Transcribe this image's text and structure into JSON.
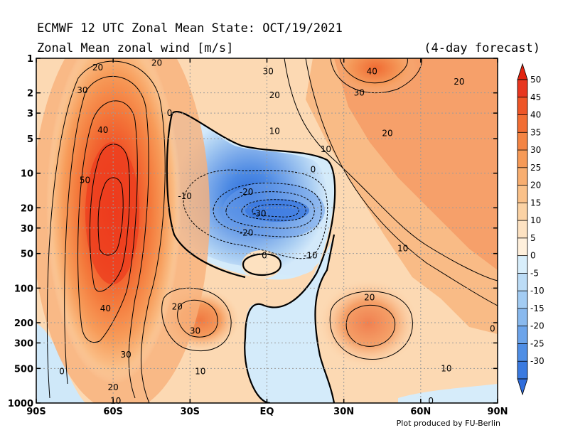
{
  "title": "ECMWF 12 UTC Zonal Mean State: OCT/19/2021",
  "subtitle": "Zonal Mean zonal wind [m/s]",
  "forecast_note": "(4-day forecast)",
  "credit": "Plot produced by FU-Berlin",
  "chart_data": {
    "type": "contour",
    "variable": "Zonal Mean zonal wind",
    "units": "m/s",
    "x_axis": {
      "ticks": [
        -90,
        -60,
        -30,
        0,
        30,
        60,
        90
      ],
      "tick_labels": [
        "90S",
        "60S",
        "30S",
        "EQ",
        "30N",
        "60N",
        "90N"
      ],
      "range": [
        -90,
        90
      ]
    },
    "y_axis": {
      "scale": "log",
      "inverted": true,
      "ticks": [
        1,
        2,
        3,
        5,
        10,
        20,
        30,
        50,
        100,
        200,
        300,
        500,
        1000
      ],
      "tick_labels": [
        "1",
        "2",
        "3",
        "5",
        "10",
        "20",
        "30",
        "50",
        "100",
        "200",
        "300",
        "500",
        "1000"
      ],
      "range": [
        1,
        1000
      ]
    },
    "grid": true,
    "colorbar": {
      "levels": [
        -30,
        -25,
        -20,
        -15,
        -10,
        -5,
        0,
        5,
        10,
        15,
        20,
        25,
        30,
        35,
        40,
        45,
        50
      ],
      "labels": [
        "50",
        "45",
        "40",
        "35",
        "30",
        "25",
        "20",
        "15",
        "10",
        "5",
        "0",
        "-5",
        "-10",
        "-15",
        "-20",
        "-25",
        "-30"
      ],
      "colors": [
        "#e8361f",
        "#ee5527",
        "#f26d33",
        "#f48443",
        "#f69a57",
        "#f8ae70",
        "#fac189",
        "#fbd2a4",
        "#fde2c2",
        "#fff0dc",
        "#d8eefb",
        "#bcdcf6",
        "#a3ccf3",
        "#89b9ee",
        "#6ca4ea",
        "#4f8ee5",
        "#3a7ae0"
      ],
      "colors_order": "top-to-bottom",
      "extends": "both"
    },
    "contour_labels": [
      {
        "value": "20",
        "lon": -66,
        "p": 1.2
      },
      {
        "value": "20",
        "lon": -43,
        "p": 1.1
      },
      {
        "value": "30",
        "lon": 0.5,
        "p": 1.3
      },
      {
        "value": "40",
        "lon": 41,
        "p": 1.3
      },
      {
        "value": "20",
        "lon": 75,
        "p": 1.6
      },
      {
        "value": "30",
        "lon": -72,
        "p": 1.9
      },
      {
        "value": "20",
        "lon": 3,
        "p": 2.1
      },
      {
        "value": "30",
        "lon": 36,
        "p": 2.0
      },
      {
        "value": "0",
        "lon": -38,
        "p": 3.0
      },
      {
        "value": "40",
        "lon": -64,
        "p": 4.2
      },
      {
        "value": "10",
        "lon": 3,
        "p": 4.3
      },
      {
        "value": "20",
        "lon": 47,
        "p": 4.5
      },
      {
        "value": "10",
        "lon": 23,
        "p": 6.2
      },
      {
        "value": "0",
        "lon": 18,
        "p": 9.3
      },
      {
        "value": "50",
        "lon": -71,
        "p": 11.5
      },
      {
        "value": "-10",
        "lon": -32,
        "p": 15.8
      },
      {
        "value": "-20",
        "lon": -8,
        "p": 14.5
      },
      {
        "value": "-30",
        "lon": -3,
        "p": 22.5
      },
      {
        "value": "-20",
        "lon": -8,
        "p": 33
      },
      {
        "value": "10",
        "lon": 53,
        "p": 45
      },
      {
        "value": "-10",
        "lon": 17,
        "p": 52
      },
      {
        "value": "0",
        "lon": -1,
        "p": 52
      },
      {
        "value": "20",
        "lon": 40,
        "p": 121
      },
      {
        "value": "20",
        "lon": -35,
        "p": 145
      },
      {
        "value": "40",
        "lon": -63,
        "p": 150
      },
      {
        "value": "30",
        "lon": -28,
        "p": 235
      },
      {
        "value": "0",
        "lon": 88,
        "p": 225
      },
      {
        "value": "30",
        "lon": -55,
        "p": 380
      },
      {
        "value": "10",
        "lon": 70,
        "p": 500
      },
      {
        "value": "0",
        "lon": -80,
        "p": 530
      },
      {
        "value": "10",
        "lon": -26,
        "p": 530
      },
      {
        "value": "20",
        "lon": -60,
        "p": 730
      },
      {
        "value": "10",
        "lon": -59,
        "p": 960
      },
      {
        "value": "0",
        "lon": 64,
        "p": 960
      }
    ]
  }
}
